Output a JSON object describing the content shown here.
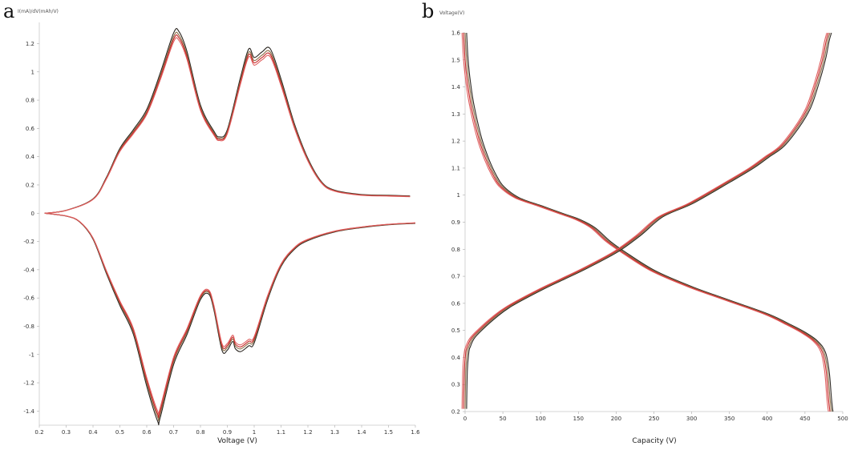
{
  "chart_data": [
    {
      "panel_label": "a",
      "type": "line",
      "xlabel": "Voltage (V)",
      "ylabel": "I(mA)/dV(mAh/V)",
      "xlim": [
        0.2,
        1.6
      ],
      "ylim": [
        -1.5,
        1.35
      ],
      "xticks": [
        "0.2",
        "0.3",
        "0.4",
        "0.5",
        "0.6",
        "0.7",
        "0.8",
        "0.9",
        "1",
        "1.1",
        "1.2",
        "1.3",
        "1.4",
        "1.5",
        "1.6"
      ],
      "yticks": [
        "1.2",
        "1",
        "0.8",
        "0.6",
        "0.4",
        "0.2",
        "0",
        "-0.2",
        "-0.4",
        "-0.6",
        "-0.8",
        "-1",
        "-1.2",
        "-1.4"
      ],
      "colors": [
        "#2a2520",
        "#8a6e46",
        "#c62525",
        "#e06060"
      ],
      "series": [
        {
          "branch": "charge",
          "x": [
            0.22,
            0.3,
            0.4,
            0.45,
            0.5,
            0.55,
            0.6,
            0.65,
            0.7,
            0.72,
            0.75,
            0.8,
            0.85,
            0.87,
            0.9,
            0.95,
            0.98,
            1.0,
            1.03,
            1.06,
            1.1,
            1.15,
            1.2,
            1.25,
            1.3,
            1.4,
            1.5,
            1.58
          ],
          "y": [
            0.0,
            0.02,
            0.1,
            0.25,
            0.45,
            0.58,
            0.72,
            0.97,
            1.25,
            1.26,
            1.12,
            0.75,
            0.57,
            0.53,
            0.58,
            0.95,
            1.14,
            1.08,
            1.12,
            1.14,
            0.93,
            0.62,
            0.38,
            0.22,
            0.16,
            0.13,
            0.125,
            0.12
          ]
        },
        {
          "branch": "discharge",
          "x": [
            1.6,
            1.5,
            1.4,
            1.3,
            1.2,
            1.15,
            1.1,
            1.05,
            1.0,
            0.98,
            0.95,
            0.93,
            0.92,
            0.9,
            0.88,
            0.85,
            0.83,
            0.8,
            0.75,
            0.7,
            0.65,
            0.64,
            0.6,
            0.55,
            0.5,
            0.45,
            0.4,
            0.35,
            0.3,
            0.22
          ],
          "y": [
            -0.07,
            -0.08,
            -0.1,
            -0.13,
            -0.19,
            -0.25,
            -0.37,
            -0.6,
            -0.9,
            -0.92,
            -0.96,
            -0.94,
            -0.89,
            -0.95,
            -0.95,
            -0.67,
            -0.56,
            -0.6,
            -0.84,
            -1.05,
            -1.42,
            -1.44,
            -1.2,
            -0.84,
            -0.64,
            -0.42,
            -0.18,
            -0.06,
            -0.02,
            0.0
          ]
        }
      ]
    },
    {
      "panel_label": "b",
      "type": "line",
      "xlabel": "Capacity (V)",
      "ylabel": "Voltage(V)",
      "xlim": [
        0,
        500
      ],
      "ylim": [
        0.2,
        1.6
      ],
      "xticks": [
        "0",
        "50",
        "100",
        "150",
        "200",
        "250",
        "300",
        "350",
        "400",
        "450",
        "500"
      ],
      "yticks": [
        "1.6",
        "1.5",
        "1.4",
        "1.3",
        "1.2",
        "1.1",
        "1",
        "0.9",
        "0.8",
        "0.7",
        "0.6",
        "0.5",
        "0.4",
        "0.3",
        "0.2"
      ],
      "colors": [
        "#2a2520",
        "#8a6e46",
        "#c62525",
        "#e06060"
      ],
      "series": [
        {
          "branch": "discharge",
          "x": [
            0,
            2,
            5,
            10,
            20,
            30,
            40,
            50,
            70,
            100,
            130,
            150,
            170,
            190,
            210,
            250,
            300,
            350,
            400,
            430,
            450,
            465,
            475,
            480,
            483,
            485
          ],
          "y": [
            1.6,
            1.5,
            1.42,
            1.33,
            1.21,
            1.13,
            1.07,
            1.03,
            0.99,
            0.96,
            0.93,
            0.91,
            0.88,
            0.83,
            0.79,
            0.72,
            0.66,
            0.61,
            0.56,
            0.52,
            0.49,
            0.46,
            0.42,
            0.35,
            0.25,
            0.2
          ]
        },
        {
          "branch": "charge",
          "x": [
            0,
            1,
            3,
            5,
            10,
            20,
            40,
            60,
            100,
            130,
            160,
            200,
            230,
            260,
            300,
            350,
            380,
            400,
            420,
            440,
            455,
            465,
            475,
            480,
            483
          ],
          "y": [
            0.21,
            0.35,
            0.42,
            0.44,
            0.47,
            0.5,
            0.55,
            0.59,
            0.65,
            0.69,
            0.73,
            0.79,
            0.85,
            0.92,
            0.97,
            1.05,
            1.1,
            1.14,
            1.18,
            1.25,
            1.32,
            1.4,
            1.5,
            1.57,
            1.6
          ]
        }
      ]
    }
  ]
}
